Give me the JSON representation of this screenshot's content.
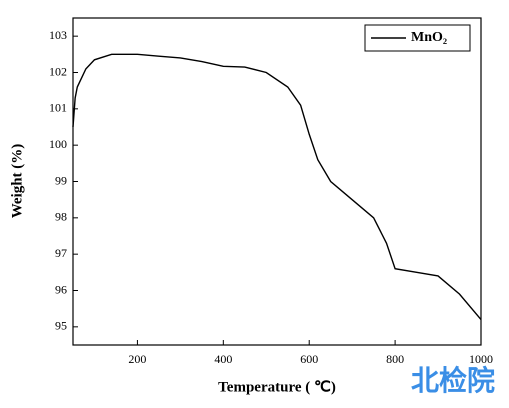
{
  "chart_data": {
    "type": "line",
    "x_label": "Temperature ( ℃)",
    "y_label": "Weight (%)",
    "x": [
      50,
      55,
      60,
      80,
      100,
      140,
      200,
      250,
      300,
      350,
      400,
      450,
      500,
      550,
      580,
      600,
      620,
      650,
      700,
      750,
      780,
      800,
      850,
      900,
      950,
      1000
    ],
    "series": [
      {
        "name": "MnO₂",
        "color": "#000000",
        "values": [
          100.5,
          101.3,
          101.6,
          102.1,
          102.35,
          102.5,
          102.5,
          102.45,
          102.4,
          102.3,
          102.17,
          102.15,
          102.0,
          101.6,
          101.1,
          100.3,
          99.6,
          99.0,
          98.5,
          98.0,
          97.3,
          96.6,
          96.5,
          96.4,
          95.9,
          95.2
        ]
      }
    ],
    "xlim": [
      50,
      1000
    ],
    "xticks": [
      200,
      400,
      600,
      800,
      1000
    ],
    "ylim": [
      94.5,
      103.5
    ],
    "yticks": [
      95,
      96,
      97,
      98,
      99,
      100,
      101,
      102,
      103
    ],
    "legend": "top-right",
    "grid": false,
    "watermark": "北检院"
  }
}
